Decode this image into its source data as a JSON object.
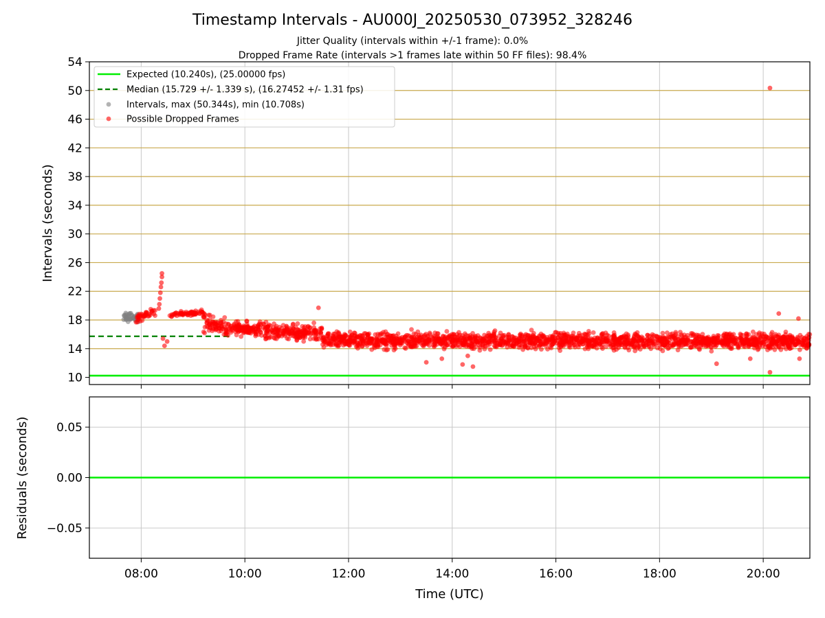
{
  "title": "Timestamp Intervals - AU000J_20250530_073952_328246",
  "subtitle_1": "Jitter Quality (intervals within +/-1 frame): 0.0%",
  "subtitle_2": "Dropped Frame Rate (intervals >1 frames late within 50 FF files): 98.4%",
  "colors": {
    "expected": "#00ee00",
    "median": "#008000",
    "intervals": "#808080",
    "dropped": "#ff0000",
    "gold_grid": "#c8a84b",
    "grid": "#c8c8c8"
  },
  "chart_data": [
    {
      "type": "scatter",
      "ylabel": "Intervals (seconds)",
      "xlim_hours": [
        7.0,
        20.9
      ],
      "ylim": [
        9,
        54
      ],
      "yticks": [
        10,
        14,
        18,
        22,
        26,
        30,
        34,
        38,
        42,
        46,
        50,
        54
      ],
      "xticks_hours": [
        8,
        10,
        12,
        14,
        16,
        18,
        20
      ],
      "grid": "vertical x-grid; horizontal gold lines at y-ticks 14 to 50",
      "legend_position": "upper-left",
      "legend": [
        "Expected (10.240s), (25.00000 fps)",
        "Median (15.729 +/- 1.339 s), (16.27452 +/- 1.31 fps)",
        "Intervals, max (50.344s), min (10.708s)",
        "Possible Dropped Frames"
      ],
      "series": [
        {
          "name": "Expected (10.240s), (25.00000 fps)",
          "kind": "hline",
          "y": 10.24
        },
        {
          "name": "Median (15.729 +/- 1.339 s), (16.27452 +/- 1.31 fps)",
          "kind": "dashed-hline",
          "y": 15.729,
          "x_range_hours": [
            7.0,
            9.7
          ]
        },
        {
          "name": "Intervals, max (50.344s), min (10.708s)",
          "kind": "scatter",
          "x_range_hours": [
            7.65,
            7.95
          ],
          "y_range": [
            15.6,
            19.2
          ]
        },
        {
          "name": "Possible Dropped Frames",
          "kind": "scatter",
          "segments": [
            {
              "from": 7.9,
              "to": 8.3,
              "y_start": 18.2,
              "y_end": 19.2,
              "spread": 0.5,
              "count": 40
            },
            {
              "from": 8.55,
              "to": 9.2,
              "y_start": 18.7,
              "y_end": 19.0,
              "spread": 0.3,
              "count": 60
            },
            {
              "from": 9.2,
              "to": 9.8,
              "y_start": 17.8,
              "y_end": 16.6,
              "spread": 1.1,
              "count": 90
            },
            {
              "from": 9.8,
              "to": 11.5,
              "y_start": 16.8,
              "y_end": 16.1,
              "spread": 1.0,
              "count": 300
            },
            {
              "from": 11.5,
              "to": 20.9,
              "y_start": 15.2,
              "y_end": 15.0,
              "spread": 1.0,
              "count": 1900
            }
          ],
          "extra_points": [
            {
              "x": 8.4,
              "y": 24.5
            },
            {
              "x": 8.4,
              "y": 24.0
            },
            {
              "x": 8.39,
              "y": 23.2
            },
            {
              "x": 8.38,
              "y": 22.6
            },
            {
              "x": 8.37,
              "y": 21.8
            },
            {
              "x": 8.36,
              "y": 21.0
            },
            {
              "x": 8.35,
              "y": 20.2
            },
            {
              "x": 8.34,
              "y": 19.6
            },
            {
              "x": 8.42,
              "y": 15.4
            },
            {
              "x": 8.45,
              "y": 14.4
            },
            {
              "x": 8.5,
              "y": 15.0
            },
            {
              "x": 11.42,
              "y": 19.7
            },
            {
              "x": 13.5,
              "y": 12.1
            },
            {
              "x": 13.8,
              "y": 12.6
            },
            {
              "x": 14.2,
              "y": 11.8
            },
            {
              "x": 14.4,
              "y": 11.5
            },
            {
              "x": 14.3,
              "y": 13.0
            },
            {
              "x": 19.1,
              "y": 11.9
            },
            {
              "x": 19.75,
              "y": 12.6
            },
            {
              "x": 20.13,
              "y": 10.708
            },
            {
              "x": 20.13,
              "y": 50.344
            },
            {
              "x": 20.3,
              "y": 18.9
            },
            {
              "x": 20.7,
              "y": 12.6
            },
            {
              "x": 20.68,
              "y": 18.2
            }
          ]
        }
      ]
    },
    {
      "type": "line",
      "xlabel": "Time (UTC)",
      "ylabel": "Residuals (seconds)",
      "xlim_hours": [
        7.0,
        20.9
      ],
      "ylim": [
        -0.08,
        0.08
      ],
      "yticks": [
        0.05,
        0.0,
        -0.05
      ],
      "ytick_labels": [
        "0.05",
        "0.00",
        "−0.05"
      ],
      "xticks_hours": [
        8,
        10,
        12,
        14,
        16,
        18,
        20
      ],
      "xtick_labels": [
        "08:00",
        "10:00",
        "12:00",
        "14:00",
        "16:00",
        "18:00",
        "20:00"
      ],
      "grid": "on",
      "series": [
        {
          "kind": "hline",
          "y": 0.0
        }
      ]
    }
  ]
}
